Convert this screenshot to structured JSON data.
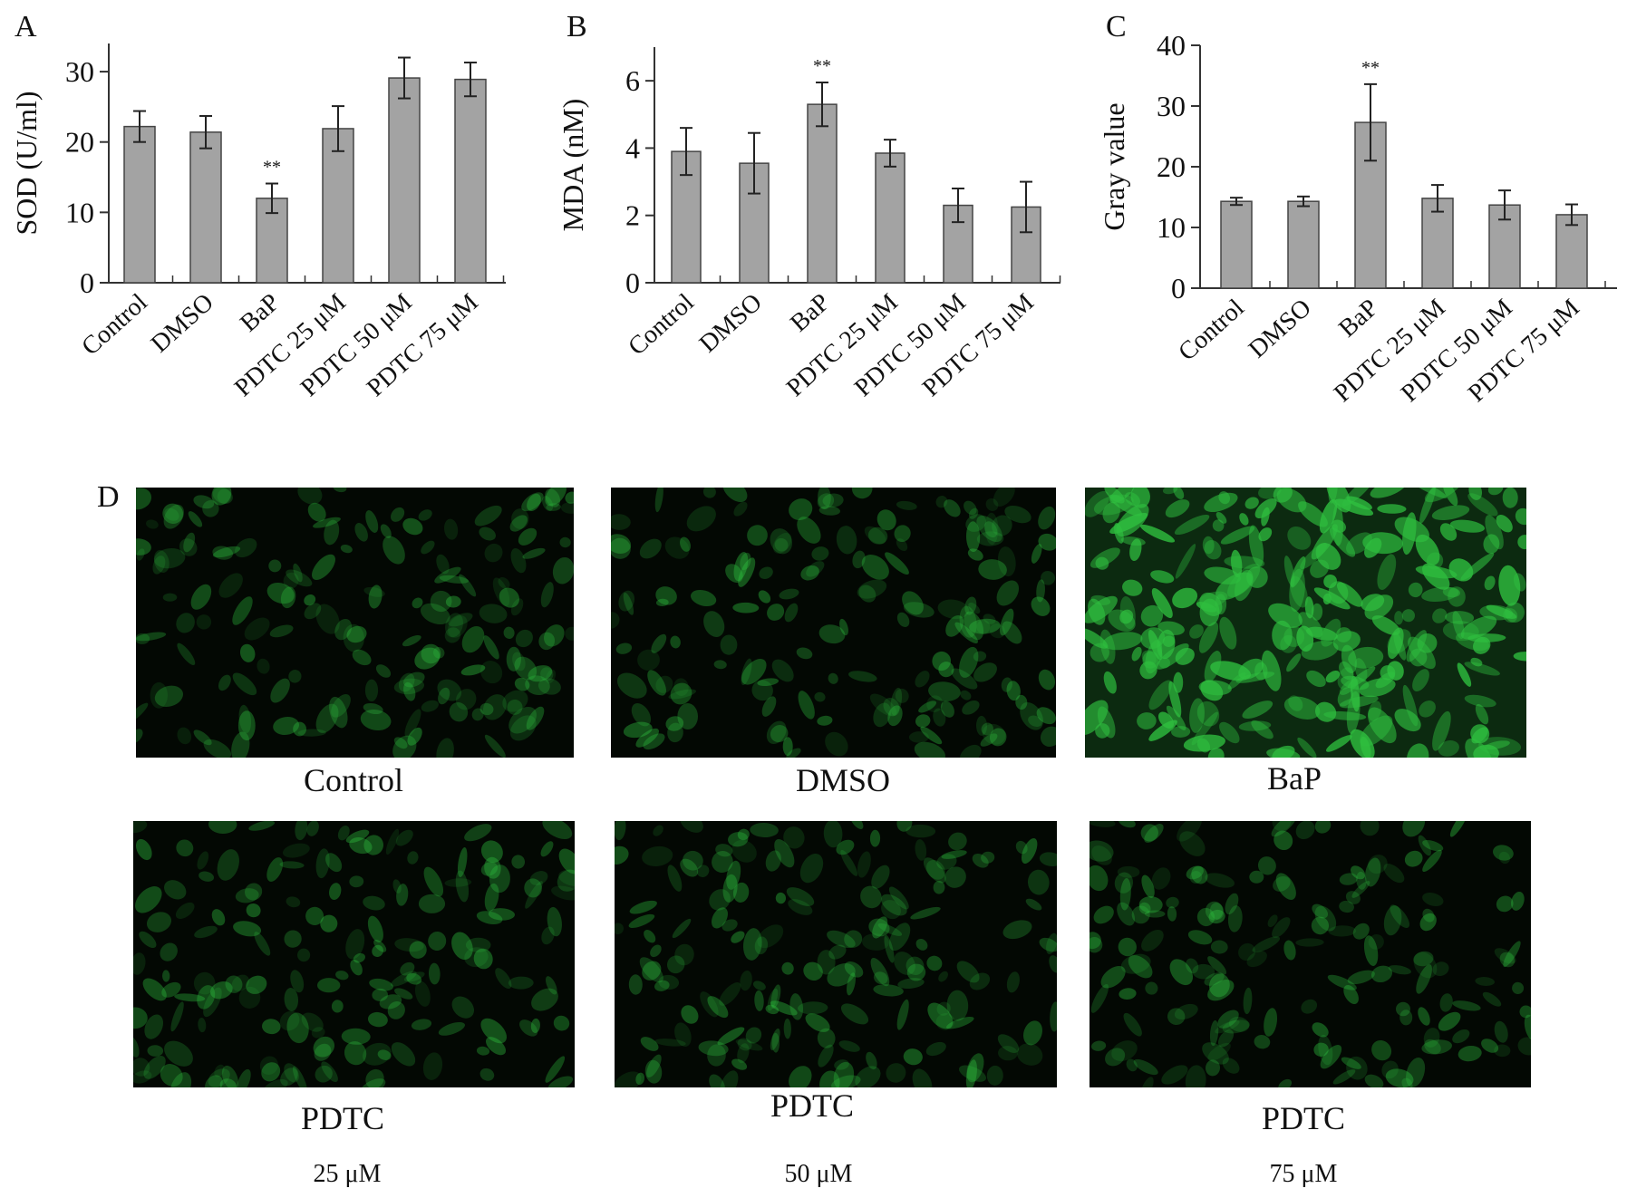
{
  "chart_data": [
    {
      "type": "bar",
      "panel": "A",
      "ylabel": "SOD (U/ml)",
      "categories": [
        "Control",
        "DMSO",
        "BaP",
        "PDTC 25 μM",
        "PDTC 50 μM",
        "PDTC 75 μM"
      ],
      "values": [
        22.2,
        21.4,
        12.0,
        21.9,
        29.1,
        28.9
      ],
      "errors": [
        2.2,
        2.3,
        2.1,
        3.2,
        2.9,
        2.4
      ],
      "annotations": [
        "",
        "",
        "**",
        "",
        "",
        ""
      ],
      "ylim": [
        0,
        34
      ],
      "yticks": [
        0,
        10,
        20,
        30
      ],
      "bar_color": "#a3a3a3"
    },
    {
      "type": "bar",
      "panel": "B",
      "ylabel": "MDA (nM)",
      "categories": [
        "Control",
        "DMSO",
        "BaP",
        "PDTC 25 μM",
        "PDTC 50 μM",
        "PDTC 75 μM"
      ],
      "values": [
        3.9,
        3.55,
        5.3,
        3.85,
        2.3,
        2.25
      ],
      "errors": [
        0.7,
        0.9,
        0.65,
        0.4,
        0.5,
        0.75
      ],
      "annotations": [
        "",
        "",
        "**",
        "",
        "",
        ""
      ],
      "ylim": [
        0,
        7
      ],
      "yticks": [
        0,
        2,
        4,
        6
      ],
      "bar_color": "#a3a3a3"
    },
    {
      "type": "bar",
      "panel": "C",
      "ylabel": "Gray value",
      "categories": [
        "Control",
        "DMSO",
        "BaP",
        "PDTC 25 μM",
        "PDTC 50 μM",
        "PDTC 75 μM"
      ],
      "values": [
        14.3,
        14.3,
        27.3,
        14.8,
        13.7,
        12.1
      ],
      "errors": [
        0.6,
        0.8,
        6.3,
        2.2,
        2.4,
        1.7
      ],
      "annotations": [
        "",
        "",
        "**",
        "",
        "",
        ""
      ],
      "ylim": [
        0,
        40
      ],
      "yticks": [
        0,
        10,
        20,
        30,
        40
      ],
      "bar_color": "#a3a3a3"
    }
  ],
  "images": {
    "panel_label": "D",
    "items": [
      {
        "caption": "Control",
        "sub": "",
        "brightness": "dim"
      },
      {
        "caption": "DMSO",
        "sub": "",
        "brightness": "dim"
      },
      {
        "caption": "BaP",
        "sub": "",
        "brightness": "bright"
      },
      {
        "caption": "PDTC",
        "sub": "25 μM",
        "brightness": "dim"
      },
      {
        "caption": "PDTC",
        "sub": "50 μM",
        "brightness": "dim"
      },
      {
        "caption": "PDTC",
        "sub": "75 μM",
        "brightness": "dim"
      }
    ],
    "fluorescence_color": "#2fbf3f"
  }
}
